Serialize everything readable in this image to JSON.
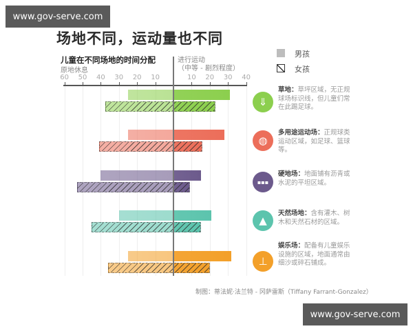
{
  "watermark": {
    "text": "www.gov-serve.com"
  },
  "header": {
    "title": "场地不同，运动量也不同",
    "subtitle": "儿童在不同场地的时间分配",
    "left_label": "原地休息",
    "right_label_line1": "进行运动",
    "right_label_line2": "（中等 - 剧烈程度）"
  },
  "legend": {
    "boy": "男孩",
    "girl": "女孩"
  },
  "credit": "制图：蒂法妮·法兰特 - 冈萨雷斯（Tiffany Farrant-Gonzalez）",
  "colors": {
    "grass": "#8ccf4e",
    "multi": "#ec6e5a",
    "hard": "#6c5a8c",
    "natural": "#5cc4ad",
    "play": "#f3a02a"
  },
  "descriptions": [
    {
      "name": "草地：",
      "text": "草坪区域，无正规球场标识线，但儿童们常在此踢足球。",
      "icon": "grass-icon"
    },
    {
      "name": "多用途运动场：",
      "text": "正规球类运动区域，如足球、篮球等。",
      "icon": "basketball-icon"
    },
    {
      "name": "硬地场：",
      "text": "地面铺有沥青或水泥的平坦区域。",
      "icon": "pavement-icon"
    },
    {
      "name": "天然场地：",
      "text": "含有灌木、树木和天然石材的区域。",
      "icon": "tree-icon"
    },
    {
      "name": "娱乐场：",
      "text": "配备有儿童娱乐设施的区域，地面通常由细沙或碎石铺成。",
      "icon": "seesaw-icon"
    }
  ],
  "chart_data": {
    "type": "bar",
    "orientation": "horizontal-diverging",
    "title": "场地不同，运动量也不同",
    "subtitle": "儿童在不同场地的时间分配",
    "xlabel_left": "原地休息",
    "xlabel_right": "进行运动（中等 - 剧烈程度）",
    "x_ticks_left": [
      60,
      50,
      40,
      30,
      20,
      10
    ],
    "x_ticks_right": [
      10,
      20,
      30,
      40
    ],
    "xlim": [
      -60,
      40
    ],
    "categories": [
      "草地",
      "多用途运动场",
      "硬地场",
      "天然场地",
      "娱乐场"
    ],
    "series": [
      {
        "name": "男孩 原地休息",
        "values": [
          25,
          25,
          40,
          30,
          25
        ]
      },
      {
        "name": "男孩 进行运动",
        "values": [
          31,
          28,
          15,
          21,
          32
        ]
      },
      {
        "name": "女孩 原地休息",
        "values": [
          37.5,
          41,
          53,
          45,
          36
        ]
      },
      {
        "name": "女孩 进行运动",
        "values": [
          23,
          16,
          9,
          15,
          20
        ]
      }
    ],
    "legend": [
      "男孩",
      "女孩（斜线）"
    ],
    "grid": true
  }
}
